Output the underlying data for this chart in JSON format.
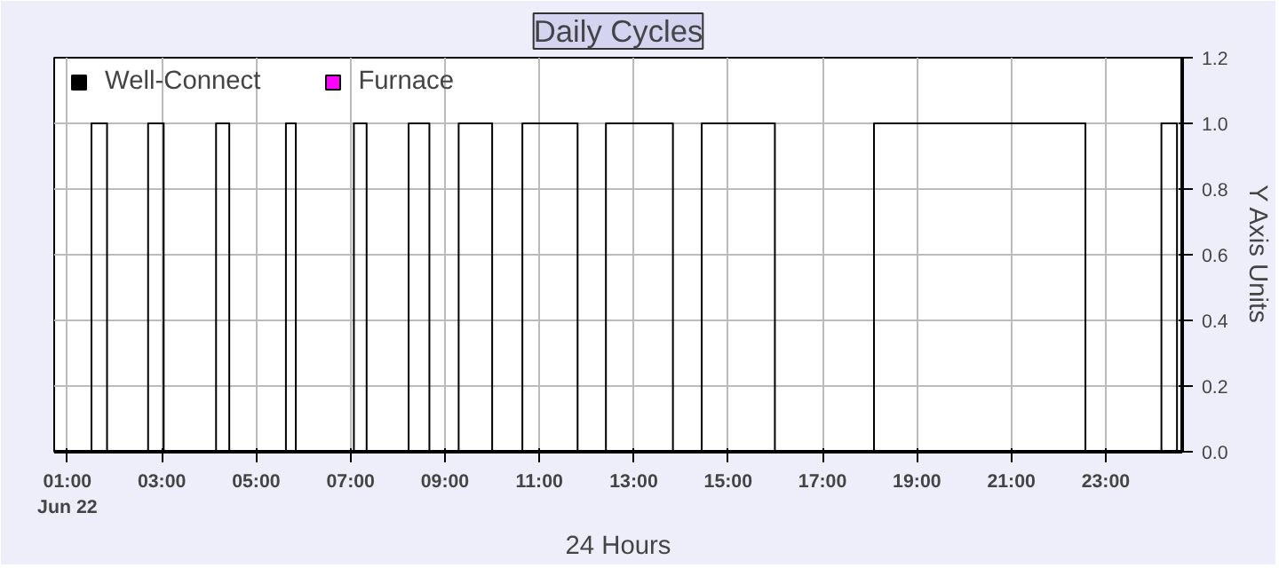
{
  "chart_data": {
    "type": "line",
    "title": "Daily Cycles",
    "xlabel": "24 Hours",
    "ylabel": "Y Axis Units",
    "xlim": [
      0.72,
      24.62
    ],
    "ylim": [
      0,
      1.2
    ],
    "xticks": [
      {
        "value": 1,
        "label": "01:00\nJun 22"
      },
      {
        "value": 3,
        "label": "03:00"
      },
      {
        "value": 5,
        "label": "05:00"
      },
      {
        "value": 7,
        "label": "07:00"
      },
      {
        "value": 9,
        "label": "09:00"
      },
      {
        "value": 11,
        "label": "11:00"
      },
      {
        "value": 13,
        "label": "13:00"
      },
      {
        "value": 15,
        "label": "15:00"
      },
      {
        "value": 17,
        "label": "17:00"
      },
      {
        "value": 19,
        "label": "19:00"
      },
      {
        "value": 21,
        "label": "21:00"
      },
      {
        "value": 23,
        "label": "23:00"
      }
    ],
    "yticks": [
      {
        "value": 0,
        "label": "0.0"
      },
      {
        "value": 0.2,
        "label": "0.2"
      },
      {
        "value": 0.4,
        "label": "0.4"
      },
      {
        "value": 0.6,
        "label": "0.6"
      },
      {
        "value": 0.8,
        "label": "0.8"
      },
      {
        "value": 1,
        "label": "1.0"
      },
      {
        "value": 1.2,
        "label": "1.2"
      }
    ],
    "grid": true,
    "legend": "top left",
    "series": [
      {
        "name": "Well-Connect",
        "color": "#000000",
        "x": [
          0.72,
          1.51,
          1.51,
          1.84,
          1.84,
          2.71,
          2.71,
          3.04,
          3.04,
          4.15,
          4.15,
          4.43,
          4.43,
          5.63,
          5.63,
          5.84,
          5.84,
          7.07,
          7.07,
          7.34,
          7.34,
          8.23,
          8.23,
          8.67,
          8.67,
          9.29,
          9.29,
          10.0,
          10.0,
          10.64,
          10.64,
          11.81,
          11.81,
          12.41,
          12.41,
          13.83,
          13.83,
          14.44,
          14.44,
          15.99,
          15.99,
          18.09,
          18.09,
          22.57,
          22.57,
          24.18,
          24.18,
          24.51,
          24.51,
          24.62
        ],
        "values": [
          0,
          0,
          1,
          1,
          0,
          0,
          1,
          1,
          0,
          0,
          1,
          1,
          0,
          0,
          1,
          1,
          0,
          0,
          1,
          1,
          0,
          0,
          1,
          1,
          0,
          0,
          1,
          1,
          0,
          0,
          1,
          1,
          0,
          0,
          1,
          1,
          0,
          0,
          1,
          1,
          0,
          0,
          1,
          1,
          0,
          0,
          1,
          1,
          0,
          0
        ]
      },
      {
        "name": "Furnace",
        "color": "#ff00ff"
      }
    ]
  }
}
